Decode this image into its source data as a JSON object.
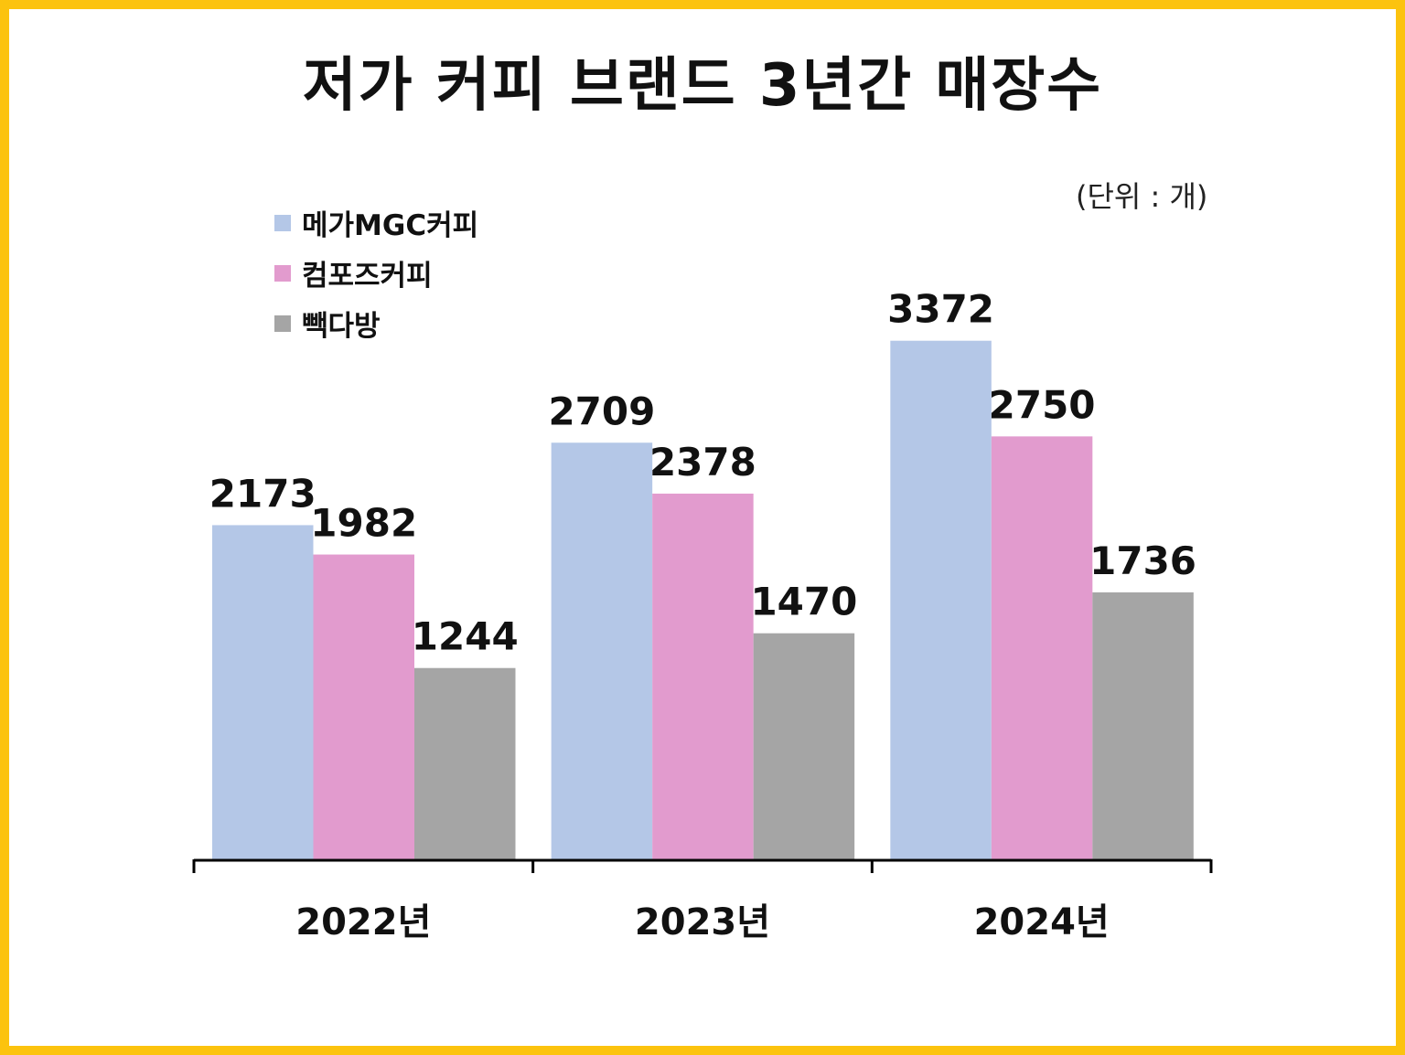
{
  "chart_data": {
    "type": "bar",
    "title": "저가 커피 브랜드 3년간 매장수",
    "unit_note": "(단위 : 개)",
    "categories": [
      "2022년",
      "2023년",
      "2024년"
    ],
    "series": [
      {
        "name": "메가MGC커피",
        "color": "#b4c7e7",
        "values": [
          2173,
          2709,
          3372
        ]
      },
      {
        "name": "컴포즈커피",
        "color": "#e29bce",
        "values": [
          1982,
          2378,
          2750
        ]
      },
      {
        "name": "빽다방",
        "color": "#a5a5a5",
        "values": [
          1244,
          1470,
          1736
        ]
      }
    ],
    "ylim": [
      0,
      3400
    ],
    "grid": false,
    "legend_position": "top-left",
    "frame_color": "#fcc30e",
    "axis_color": "#000000"
  }
}
